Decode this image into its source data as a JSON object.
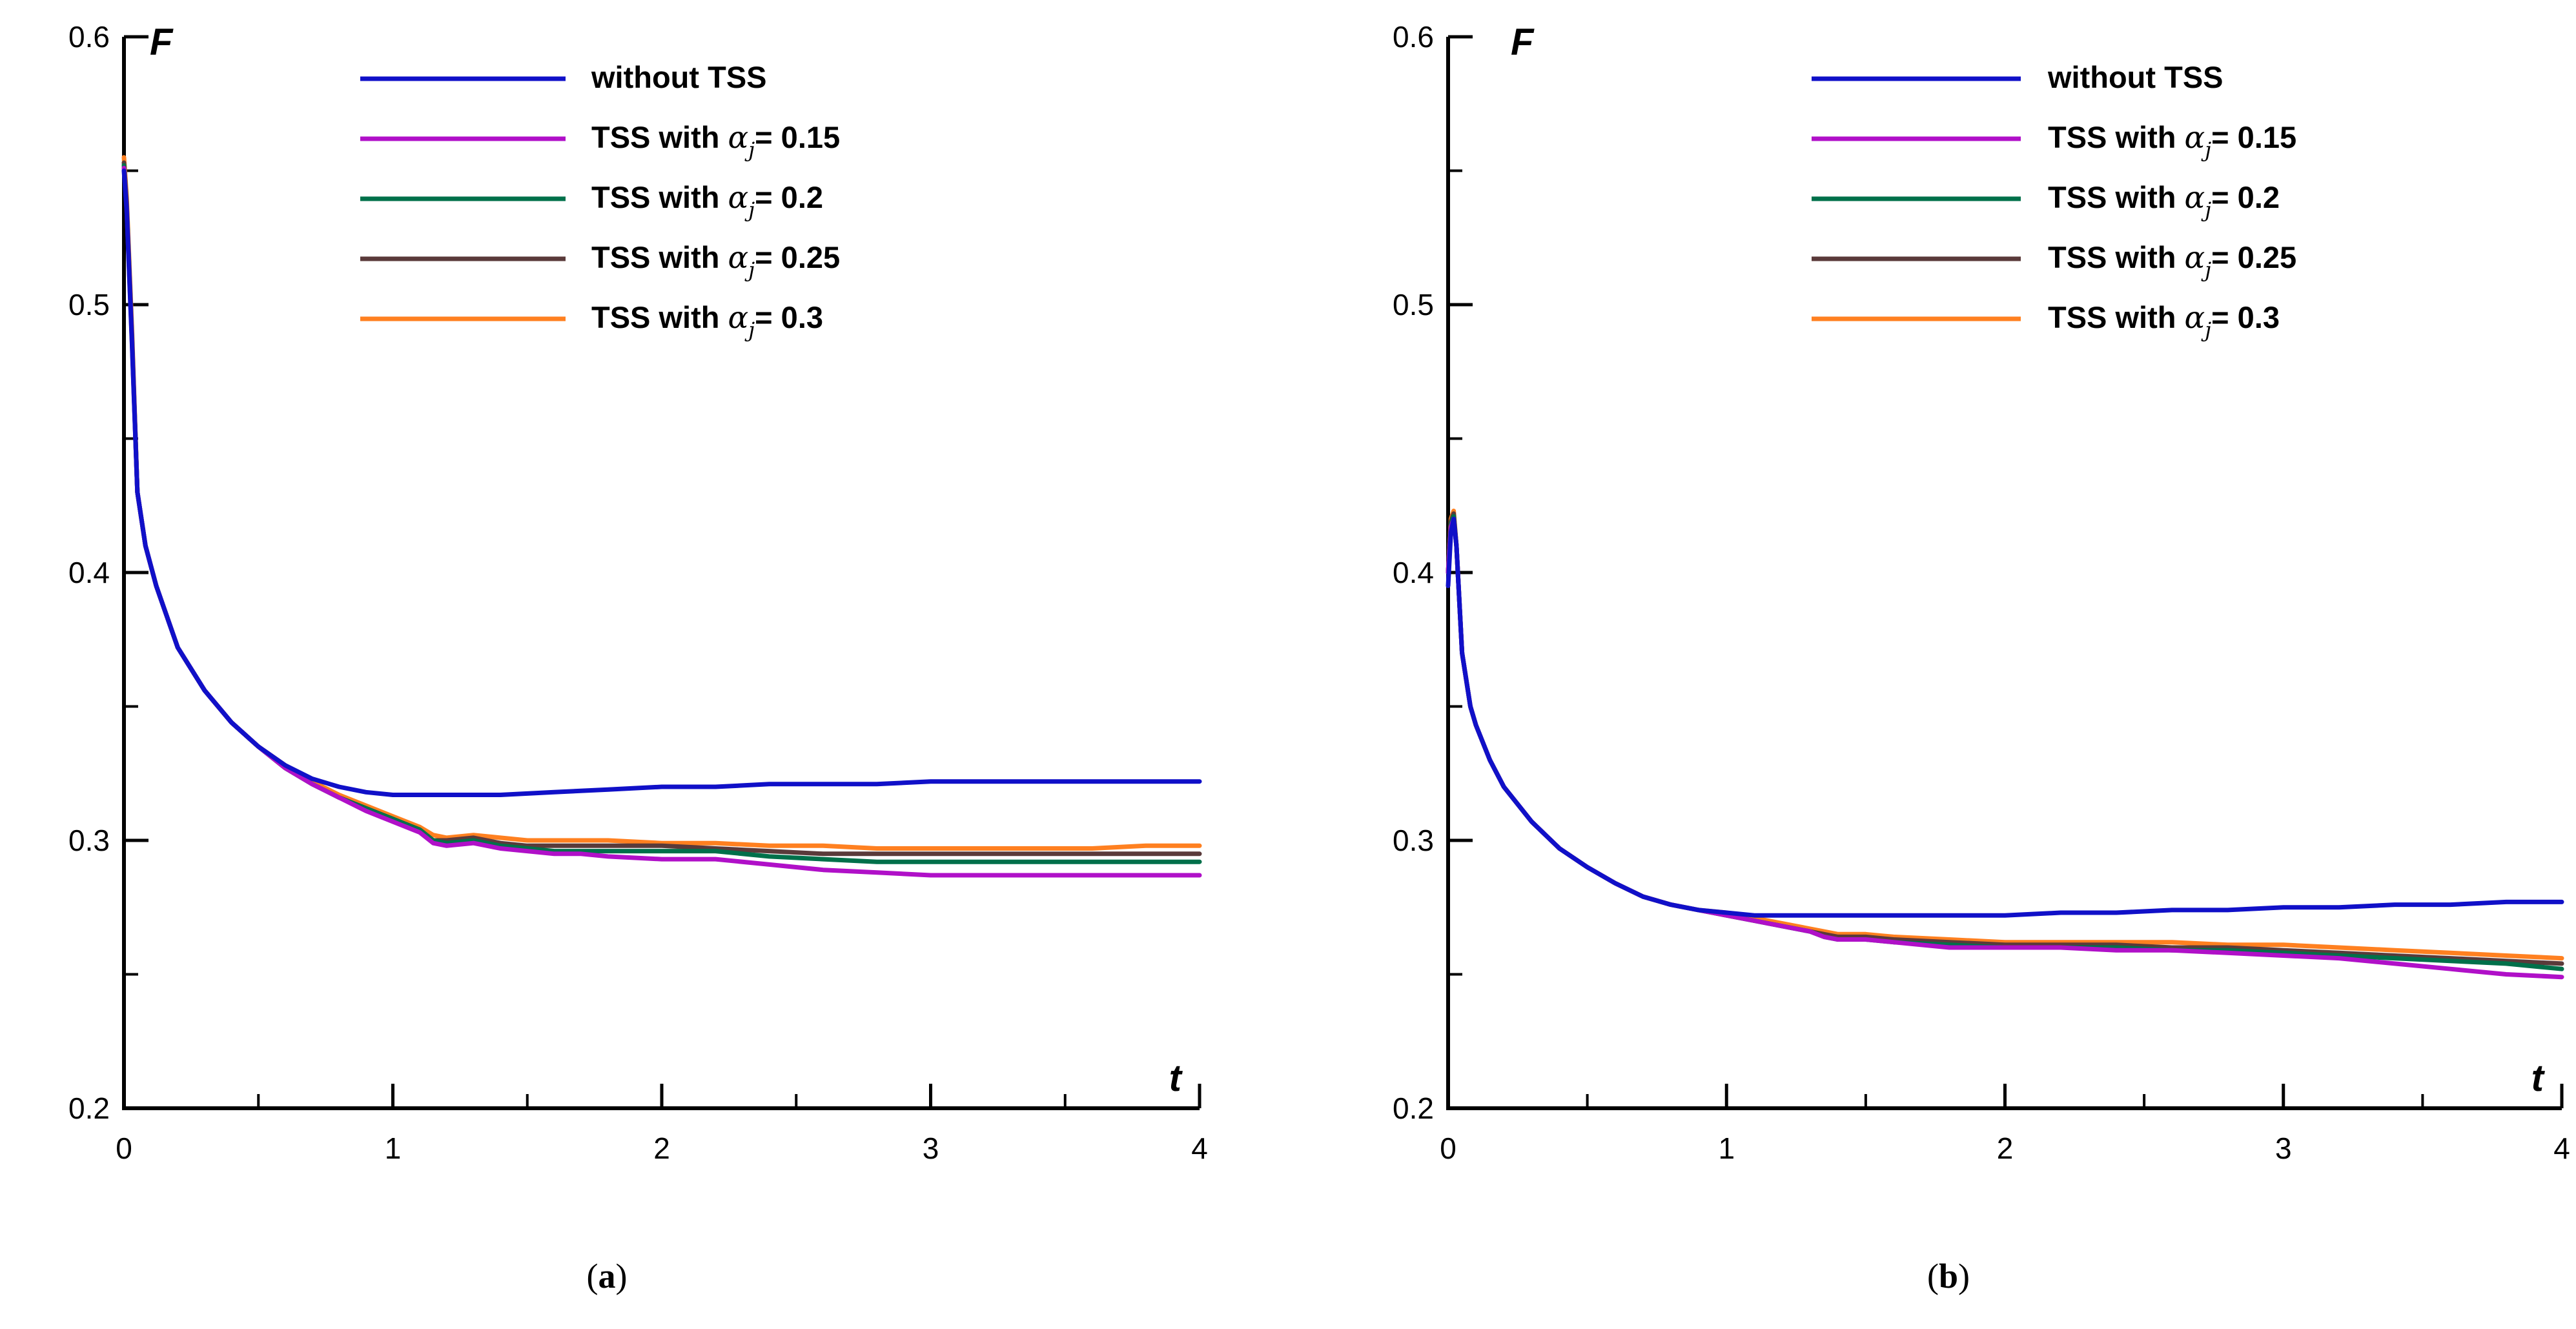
{
  "colors": {
    "without_tss": "#1010c8",
    "alpha_015": "#b010c8",
    "alpha_02": "#00704a",
    "alpha_025": "#5a3a3a",
    "alpha_03": "#ff8020",
    "axis": "#000000"
  },
  "chart_data": [
    {
      "type": "line",
      "id": "a",
      "caption": {
        "open": "(",
        "letter": "a",
        "close": ")"
      },
      "xlabel": "t",
      "ylabel": "F",
      "xlim": [
        0,
        4
      ],
      "ylim": [
        0.2,
        0.6
      ],
      "xticks": [
        0,
        1,
        2,
        3,
        4
      ],
      "xtick_labels": [
        "0",
        "1",
        "2",
        "3",
        "4"
      ],
      "yticks": [
        0.2,
        0.3,
        0.4,
        0.5,
        0.6
      ],
      "ytick_labels": [
        "0.2",
        "0.3",
        "0.4",
        "0.5",
        "0.6"
      ],
      "x_minor_step": 0.5,
      "y_minor_step": 0.05,
      "legend": [
        {
          "prefix": "without TSS",
          "alpha": "",
          "sub": "",
          "value": ""
        },
        {
          "prefix": "TSS with ",
          "alpha": "α",
          "sub": "j",
          "value": "= 0.15"
        },
        {
          "prefix": "TSS with ",
          "alpha": "α",
          "sub": "j",
          "value": "= 0.2"
        },
        {
          "prefix": "TSS with ",
          "alpha": "α",
          "sub": "j",
          "value": "= 0.25"
        },
        {
          "prefix": "TSS with ",
          "alpha": "α",
          "sub": "j",
          "value": "= 0.3"
        }
      ],
      "series": [
        {
          "name": "TSS with alpha_j = 0.3",
          "color_key": "alpha_03",
          "x": [
            0,
            0.01,
            0.03,
            0.05,
            0.08,
            0.12,
            0.2,
            0.3,
            0.4,
            0.5,
            0.6,
            0.7,
            0.8,
            0.9,
            1.0,
            1.1,
            1.15,
            1.2,
            1.3,
            1.4,
            1.5,
            1.6,
            1.7,
            1.8,
            2.0,
            2.2,
            2.4,
            2.6,
            2.8,
            3.0,
            3.2,
            3.4,
            3.6,
            3.8,
            4.0
          ],
          "y": [
            0.555,
            0.54,
            0.49,
            0.43,
            0.41,
            0.395,
            0.372,
            0.356,
            0.344,
            0.335,
            0.328,
            0.322,
            0.317,
            0.313,
            0.309,
            0.305,
            0.302,
            0.301,
            0.302,
            0.301,
            0.3,
            0.3,
            0.3,
            0.3,
            0.299,
            0.299,
            0.298,
            0.298,
            0.297,
            0.297,
            0.297,
            0.297,
            0.297,
            0.298,
            0.298
          ]
        },
        {
          "name": "TSS with alpha_j = 0.25",
          "color_key": "alpha_025",
          "x": [
            0,
            0.01,
            0.03,
            0.05,
            0.08,
            0.12,
            0.2,
            0.3,
            0.4,
            0.5,
            0.6,
            0.7,
            0.8,
            0.9,
            1.0,
            1.1,
            1.15,
            1.2,
            1.3,
            1.4,
            1.5,
            1.6,
            1.7,
            1.8,
            2.0,
            2.2,
            2.4,
            2.6,
            2.8,
            3.0,
            3.2,
            3.4,
            3.6,
            3.8,
            4.0
          ],
          "y": [
            0.553,
            0.538,
            0.488,
            0.43,
            0.41,
            0.395,
            0.372,
            0.356,
            0.344,
            0.335,
            0.327,
            0.321,
            0.316,
            0.312,
            0.308,
            0.304,
            0.3,
            0.3,
            0.301,
            0.299,
            0.298,
            0.298,
            0.298,
            0.298,
            0.298,
            0.297,
            0.296,
            0.295,
            0.295,
            0.295,
            0.295,
            0.295,
            0.295,
            0.295,
            0.295
          ]
        },
        {
          "name": "TSS with alpha_j = 0.2",
          "color_key": "alpha_02",
          "x": [
            0,
            0.01,
            0.03,
            0.05,
            0.08,
            0.12,
            0.2,
            0.3,
            0.4,
            0.5,
            0.6,
            0.7,
            0.8,
            0.9,
            1.0,
            1.1,
            1.15,
            1.2,
            1.3,
            1.4,
            1.5,
            1.6,
            1.7,
            1.8,
            2.0,
            2.2,
            2.4,
            2.6,
            2.8,
            3.0,
            3.2,
            3.4,
            3.6,
            3.8,
            4.0
          ],
          "y": [
            0.552,
            0.537,
            0.487,
            0.43,
            0.41,
            0.395,
            0.372,
            0.356,
            0.344,
            0.335,
            0.327,
            0.321,
            0.316,
            0.312,
            0.308,
            0.304,
            0.3,
            0.299,
            0.3,
            0.298,
            0.297,
            0.296,
            0.296,
            0.296,
            0.296,
            0.296,
            0.294,
            0.293,
            0.292,
            0.292,
            0.292,
            0.292,
            0.292,
            0.292,
            0.292
          ]
        },
        {
          "name": "TSS with alpha_j = 0.15",
          "color_key": "alpha_015",
          "x": [
            0,
            0.01,
            0.03,
            0.05,
            0.08,
            0.12,
            0.2,
            0.3,
            0.4,
            0.5,
            0.6,
            0.7,
            0.8,
            0.9,
            1.0,
            1.1,
            1.15,
            1.2,
            1.3,
            1.4,
            1.5,
            1.6,
            1.7,
            1.8,
            2.0,
            2.2,
            2.4,
            2.6,
            2.8,
            3.0,
            3.2,
            3.4,
            3.6,
            3.8,
            4.0
          ],
          "y": [
            0.551,
            0.536,
            0.486,
            0.43,
            0.41,
            0.395,
            0.372,
            0.356,
            0.344,
            0.335,
            0.327,
            0.321,
            0.316,
            0.311,
            0.307,
            0.303,
            0.299,
            0.298,
            0.299,
            0.297,
            0.296,
            0.295,
            0.295,
            0.294,
            0.293,
            0.293,
            0.291,
            0.289,
            0.288,
            0.287,
            0.287,
            0.287,
            0.287,
            0.287,
            0.287
          ]
        },
        {
          "name": "without TSS",
          "color_key": "without_tss",
          "x": [
            0,
            0.01,
            0.03,
            0.05,
            0.08,
            0.12,
            0.2,
            0.3,
            0.4,
            0.5,
            0.6,
            0.7,
            0.8,
            0.9,
            1.0,
            1.1,
            1.2,
            1.4,
            1.6,
            1.8,
            2.0,
            2.2,
            2.4,
            2.6,
            2.8,
            3.0,
            3.2,
            3.4,
            3.6,
            3.8,
            4.0
          ],
          "y": [
            0.55,
            0.535,
            0.485,
            0.43,
            0.41,
            0.395,
            0.372,
            0.356,
            0.344,
            0.335,
            0.328,
            0.323,
            0.32,
            0.318,
            0.317,
            0.317,
            0.317,
            0.317,
            0.318,
            0.319,
            0.32,
            0.32,
            0.321,
            0.321,
            0.321,
            0.322,
            0.322,
            0.322,
            0.322,
            0.322,
            0.322
          ]
        }
      ]
    },
    {
      "type": "line",
      "id": "b",
      "caption": {
        "open": "(",
        "letter": "b",
        "close": ")"
      },
      "xlabel": "t",
      "ylabel": "F",
      "xlim": [
        0,
        4
      ],
      "ylim": [
        0.2,
        0.6
      ],
      "xticks": [
        0,
        1,
        2,
        3,
        4
      ],
      "xtick_labels": [
        "0",
        "1",
        "2",
        "3",
        "4"
      ],
      "yticks": [
        0.2,
        0.3,
        0.4,
        0.5,
        0.6
      ],
      "ytick_labels": [
        "0.2",
        "0.3",
        "0.4",
        "0.5",
        "0.6"
      ],
      "x_minor_step": 0.5,
      "y_minor_step": 0.05,
      "legend": [
        {
          "prefix": "without TSS",
          "alpha": "",
          "sub": "",
          "value": ""
        },
        {
          "prefix": "TSS with ",
          "alpha": "α",
          "sub": "j",
          "value": "= 0.15"
        },
        {
          "prefix": "TSS with ",
          "alpha": "α",
          "sub": "j",
          "value": "= 0.2"
        },
        {
          "prefix": "TSS with ",
          "alpha": "α",
          "sub": "j",
          "value": "= 0.25"
        },
        {
          "prefix": "TSS with ",
          "alpha": "α",
          "sub": "j",
          "value": "= 0.3"
        }
      ],
      "series": [
        {
          "name": "TSS with alpha_j = 0.3",
          "color_key": "alpha_03",
          "x": [
            0,
            0.01,
            0.02,
            0.03,
            0.05,
            0.08,
            0.1,
            0.15,
            0.2,
            0.3,
            0.4,
            0.5,
            0.6,
            0.7,
            0.8,
            0.9,
            1.0,
            1.1,
            1.2,
            1.3,
            1.35,
            1.4,
            1.5,
            1.6,
            1.8,
            2.0,
            2.2,
            2.4,
            2.6,
            2.8,
            3.0,
            3.2,
            3.4,
            3.6,
            3.8,
            4.0
          ],
          "y": [
            0.4,
            0.42,
            0.423,
            0.41,
            0.37,
            0.35,
            0.343,
            0.33,
            0.32,
            0.307,
            0.297,
            0.29,
            0.284,
            0.279,
            0.276,
            0.274,
            0.273,
            0.271,
            0.269,
            0.267,
            0.266,
            0.265,
            0.265,
            0.264,
            0.263,
            0.262,
            0.262,
            0.262,
            0.262,
            0.261,
            0.261,
            0.26,
            0.259,
            0.258,
            0.257,
            0.256
          ]
        },
        {
          "name": "TSS with alpha_j = 0.25",
          "color_key": "alpha_025",
          "x": [
            0,
            0.01,
            0.02,
            0.03,
            0.05,
            0.08,
            0.1,
            0.15,
            0.2,
            0.3,
            0.4,
            0.5,
            0.6,
            0.7,
            0.8,
            0.9,
            1.0,
            1.1,
            1.2,
            1.3,
            1.35,
            1.4,
            1.5,
            1.6,
            1.8,
            2.0,
            2.2,
            2.4,
            2.6,
            2.8,
            3.0,
            3.2,
            3.4,
            3.6,
            3.8,
            4.0
          ],
          "y": [
            0.4,
            0.419,
            0.422,
            0.41,
            0.37,
            0.35,
            0.343,
            0.33,
            0.32,
            0.307,
            0.297,
            0.29,
            0.284,
            0.279,
            0.276,
            0.274,
            0.272,
            0.27,
            0.268,
            0.266,
            0.265,
            0.264,
            0.264,
            0.263,
            0.262,
            0.261,
            0.261,
            0.261,
            0.26,
            0.26,
            0.259,
            0.258,
            0.257,
            0.256,
            0.255,
            0.254
          ]
        },
        {
          "name": "TSS with alpha_j = 0.2",
          "color_key": "alpha_02",
          "x": [
            0,
            0.01,
            0.02,
            0.03,
            0.05,
            0.08,
            0.1,
            0.15,
            0.2,
            0.3,
            0.4,
            0.5,
            0.6,
            0.7,
            0.8,
            0.9,
            1.0,
            1.1,
            1.2,
            1.3,
            1.35,
            1.4,
            1.5,
            1.6,
            1.8,
            2.0,
            2.2,
            2.4,
            2.6,
            2.8,
            3.0,
            3.2,
            3.4,
            3.6,
            3.8,
            4.0
          ],
          "y": [
            0.4,
            0.418,
            0.421,
            0.41,
            0.37,
            0.35,
            0.343,
            0.33,
            0.32,
            0.307,
            0.297,
            0.29,
            0.284,
            0.279,
            0.276,
            0.274,
            0.272,
            0.27,
            0.268,
            0.266,
            0.264,
            0.263,
            0.263,
            0.262,
            0.261,
            0.26,
            0.26,
            0.26,
            0.259,
            0.259,
            0.258,
            0.257,
            0.256,
            0.255,
            0.254,
            0.252
          ]
        },
        {
          "name": "TSS with alpha_j = 0.15",
          "color_key": "alpha_015",
          "x": [
            0,
            0.01,
            0.02,
            0.03,
            0.05,
            0.08,
            0.1,
            0.15,
            0.2,
            0.3,
            0.4,
            0.5,
            0.6,
            0.7,
            0.8,
            0.9,
            1.0,
            1.1,
            1.2,
            1.3,
            1.35,
            1.4,
            1.5,
            1.6,
            1.8,
            2.0,
            2.2,
            2.4,
            2.6,
            2.8,
            3.0,
            3.2,
            3.4,
            3.6,
            3.8,
            4.0
          ],
          "y": [
            0.4,
            0.417,
            0.42,
            0.41,
            0.37,
            0.35,
            0.343,
            0.33,
            0.32,
            0.307,
            0.297,
            0.29,
            0.284,
            0.279,
            0.276,
            0.274,
            0.272,
            0.27,
            0.268,
            0.266,
            0.264,
            0.263,
            0.263,
            0.262,
            0.26,
            0.26,
            0.26,
            0.259,
            0.259,
            0.258,
            0.257,
            0.256,
            0.254,
            0.252,
            0.25,
            0.249
          ]
        },
        {
          "name": "without TSS",
          "color_key": "without_tss",
          "x": [
            0,
            0.01,
            0.02,
            0.03,
            0.05,
            0.08,
            0.1,
            0.15,
            0.2,
            0.3,
            0.4,
            0.5,
            0.6,
            0.7,
            0.8,
            0.9,
            1.0,
            1.1,
            1.2,
            1.4,
            1.6,
            1.8,
            2.0,
            2.2,
            2.4,
            2.6,
            2.8,
            3.0,
            3.2,
            3.4,
            3.6,
            3.8,
            4.0
          ],
          "y": [
            0.395,
            0.415,
            0.42,
            0.41,
            0.37,
            0.35,
            0.343,
            0.33,
            0.32,
            0.307,
            0.297,
            0.29,
            0.284,
            0.279,
            0.276,
            0.274,
            0.273,
            0.272,
            0.272,
            0.272,
            0.272,
            0.272,
            0.272,
            0.273,
            0.273,
            0.274,
            0.274,
            0.275,
            0.275,
            0.276,
            0.276,
            0.277,
            0.277
          ]
        }
      ]
    }
  ]
}
